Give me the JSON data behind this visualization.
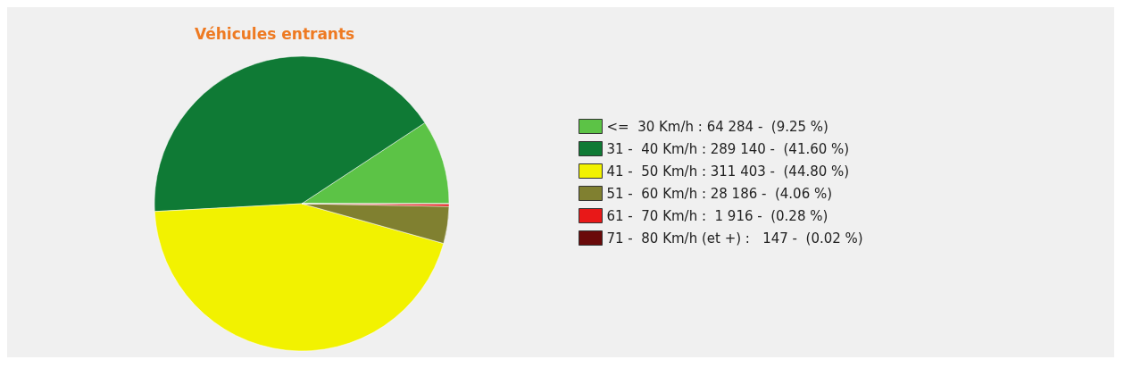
{
  "chart_data": {
    "type": "pie",
    "title": "Véhicules entrants",
    "categories": [
      "<=  30 Km/h",
      "31 -  40 Km/h",
      "41 -  50 Km/h",
      "51 -  60 Km/h",
      "61 -  70 Km/h",
      "71 -  80 Km/h (et +)"
    ],
    "values": [
      64284,
      289140,
      311403,
      28186,
      1916,
      147
    ],
    "value_labels": [
      "64 284 -  (9.25 %)",
      "289 140 -  (41.60 %)",
      "311 403 -  (44.80 %)",
      "28 186 -  (4.06 %)",
      " 1 916 -  (0.28 %)",
      "  147 -  (0.02 %)"
    ],
    "colors": [
      "#5cc346",
      "#0f7a35",
      "#f2f200",
      "#808030",
      "#e81818",
      "#6a0a0a"
    ],
    "legend": "right"
  }
}
